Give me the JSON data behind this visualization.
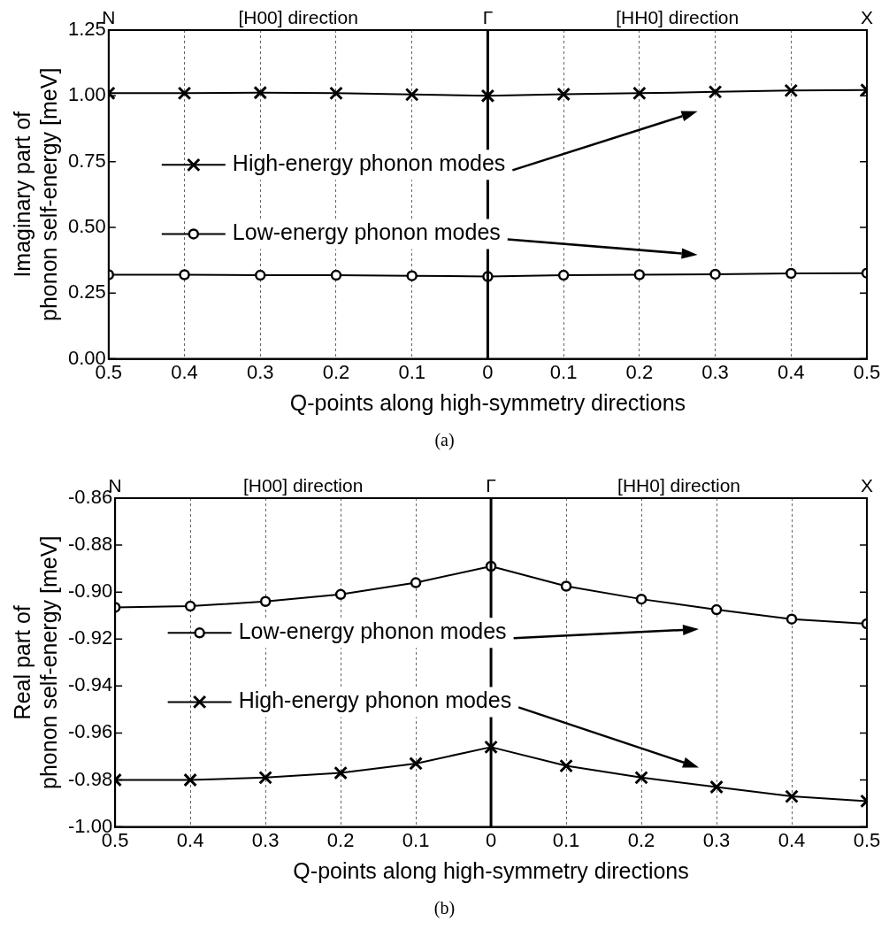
{
  "chart_data": [
    {
      "type": "line",
      "ylabel": "Imaginary part of phonon self-energy [meV]",
      "xlabel": "Q-points along high-symmetry directions",
      "x": [
        -0.5,
        -0.4,
        -0.3,
        -0.2,
        -0.1,
        0,
        0.1,
        0.2,
        0.3,
        0.4,
        0.5
      ],
      "series": [
        {
          "name": "High-energy phonon modes",
          "color": "#000000",
          "marker": "cross",
          "values": [
            1.01,
            1.01,
            1.012,
            1.01,
            1.005,
            1.0,
            1.006,
            1.01,
            1.015,
            1.02,
            1.022
          ]
        },
        {
          "name": "Low-energy phonon modes",
          "color": "#000000",
          "marker": "circle",
          "values": [
            0.32,
            0.32,
            0.318,
            0.318,
            0.316,
            0.313,
            0.318,
            0.32,
            0.322,
            0.325,
            0.326
          ]
        }
      ],
      "xlim": [
        -0.5,
        0.5
      ],
      "xticks": [
        {
          "value": -0.5,
          "label": "0.5"
        },
        {
          "value": -0.4,
          "label": "0.4"
        },
        {
          "value": -0.3,
          "label": "0.3"
        },
        {
          "value": -0.2,
          "label": "0.2"
        },
        {
          "value": -0.1,
          "label": "0.1"
        },
        0,
        0.1,
        0.2,
        0.3,
        0.4,
        0.5
      ],
      "ylim": [
        0,
        1.25
      ],
      "yticks": [
        {
          "value": 0,
          "label": "0.00"
        },
        {
          "value": 0.25,
          "label": "0.25"
        },
        {
          "value": 0.5,
          "label": "0.50"
        },
        {
          "value": 0.75,
          "label": "0.75"
        },
        {
          "value": 1,
          "label": "1.00"
        },
        {
          "value": 1.25,
          "label": "1.25"
        }
      ],
      "ref_lines": [
        {
          "axis": "x",
          "value": 0,
          "color": "#000000"
        }
      ],
      "annotations": [
        "N",
        "[H00] direction",
        "Γ",
        "[HH0] direction",
        "X",
        "(a)"
      ],
      "grid": "x",
      "legend": "left",
      "line_style": "solid"
    },
    {
      "type": "line",
      "ylabel": "Real part of phonon self-energy [meV]",
      "xlabel": "Q-points along high-symmetry directions",
      "x": [
        -0.5,
        -0.4,
        -0.3,
        -0.2,
        -0.1,
        0,
        0.1,
        0.2,
        0.3,
        0.4,
        0.5
      ],
      "series": [
        {
          "name": "Low-energy phonon modes",
          "color": "#000000",
          "marker": "circle",
          "values": [
            -0.9065,
            -0.906,
            -0.904,
            -0.901,
            -0.896,
            -0.889,
            -0.8975,
            -0.903,
            -0.9075,
            -0.9115,
            -0.9135
          ]
        },
        {
          "name": "High-energy phonon modes",
          "color": "#000000",
          "marker": "cross",
          "values": [
            -0.98,
            -0.98,
            -0.979,
            -0.977,
            -0.973,
            -0.966,
            -0.974,
            -0.979,
            -0.983,
            -0.987,
            -0.989
          ]
        }
      ],
      "xlim": [
        -0.5,
        0.5
      ],
      "xticks": [
        {
          "value": -0.5,
          "label": "0.5"
        },
        {
          "value": -0.4,
          "label": "0.4"
        },
        {
          "value": -0.3,
          "label": "0.3"
        },
        {
          "value": -0.2,
          "label": "0.2"
        },
        {
          "value": -0.1,
          "label": "0.1"
        },
        0,
        0.1,
        0.2,
        0.3,
        0.4,
        0.5
      ],
      "ylim": [
        -1,
        -0.86
      ],
      "yticks": [
        {
          "value": -1,
          "label": "-1.00"
        },
        {
          "value": -0.98,
          "label": "-0.98"
        },
        {
          "value": -0.96,
          "label": "-0.96"
        },
        {
          "value": -0.94,
          "label": "-0.94"
        },
        {
          "value": -0.92,
          "label": "-0.92"
        },
        {
          "value": -0.9,
          "label": "-0.90"
        },
        {
          "value": -0.88,
          "label": "-0.88"
        },
        {
          "value": -0.86,
          "label": "-0.86"
        }
      ],
      "ref_lines": [
        {
          "axis": "x",
          "value": 0,
          "color": "#000000"
        }
      ],
      "annotations": [
        "N",
        "[H00] direction",
        "Γ",
        "[HH0] direction",
        "X",
        "(b)"
      ],
      "grid": "x",
      "legend": "left",
      "line_style": "solid"
    }
  ]
}
